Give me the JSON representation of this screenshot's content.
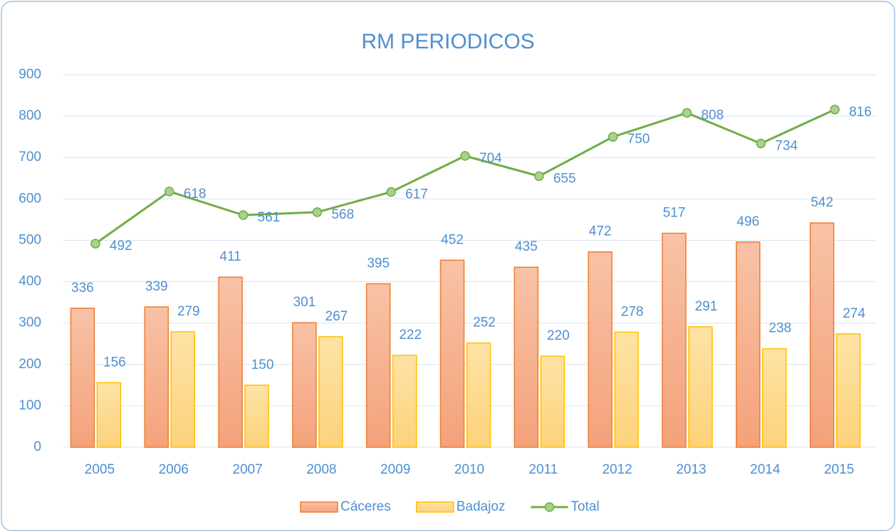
{
  "chart_data": {
    "type": "bar",
    "title": "RM PERIODICOS",
    "categories": [
      "2005",
      "2006",
      "2007",
      "2008",
      "2009",
      "2010",
      "2011",
      "2012",
      "2013",
      "2014",
      "2015"
    ],
    "series": [
      {
        "name": "Cáceres",
        "type": "bar",
        "color": "#ed7d31",
        "values": [
          336,
          339,
          411,
          301,
          395,
          452,
          435,
          472,
          517,
          496,
          542
        ]
      },
      {
        "name": "Badajoz",
        "type": "bar",
        "color": "#ffc000",
        "values": [
          156,
          279,
          150,
          267,
          222,
          252,
          220,
          278,
          291,
          238,
          274
        ]
      },
      {
        "name": "Total",
        "type": "line",
        "color": "#70ad47",
        "values": [
          492,
          618,
          561,
          568,
          617,
          704,
          655,
          750,
          808,
          734,
          816
        ]
      }
    ],
    "ylim": [
      0,
      900
    ],
    "yticks": [
      0,
      100,
      200,
      300,
      400,
      500,
      600,
      700,
      800,
      900
    ],
    "grid": true,
    "legend": "bottom"
  }
}
